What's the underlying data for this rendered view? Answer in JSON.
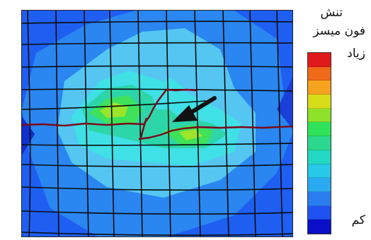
{
  "legend": {
    "title_line1": "تنش",
    "title_line2": "فون میسز",
    "high_label": "زیاد",
    "low_label": "کم",
    "colors": [
      "#e01a1a",
      "#f06a1a",
      "#f5a21e",
      "#d8dd1a",
      "#8fe22a",
      "#2ee25a",
      "#2ad88e",
      "#22d8c4",
      "#28c8e8",
      "#2aaaf0",
      "#2a7ef0",
      "#1f52f0",
      "#0a10c8"
    ]
  },
  "contour_palette": {
    "dark": "#1e5ff2",
    "mid": "#2a86f0",
    "light": "#55c6f2",
    "cyan": "#3fe0e6",
    "teal": "#2cd6a8",
    "green": "#3fe25a",
    "yellow_green": "#9be52a",
    "crack": "#7a0a1a",
    "arrow": "#111111"
  }
}
